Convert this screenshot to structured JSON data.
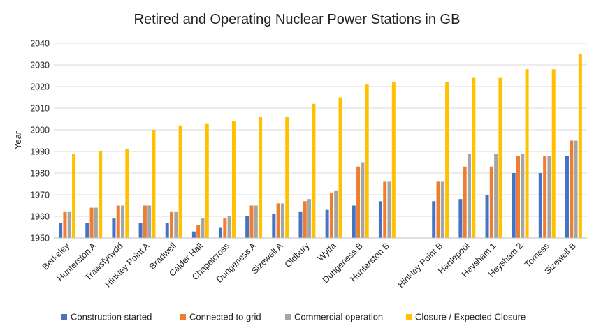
{
  "chart_data": {
    "type": "bar",
    "title": "Retired and Operating Nuclear Power Stations in GB",
    "xlabel": "",
    "ylabel": "Year",
    "ylim": [
      1950,
      2040
    ],
    "yticks": [
      1950,
      1960,
      1970,
      1980,
      1990,
      2000,
      2010,
      2020,
      2030,
      2040
    ],
    "grid": true,
    "legend_position": "bottom",
    "categories": [
      "Berkeley",
      "Hunterston A",
      "Trawsfynydd",
      "Hinkley Point A",
      "Bradwell",
      "Calder Hall",
      "Chapelcross",
      "Dungeness A",
      "Sizewell A",
      "Oldbury",
      "Wylfa",
      "Dungeness B",
      "Hunterston B",
      "",
      "Hinkley Point B",
      "Hartlepool",
      "Heysham 1",
      "Heysham 2",
      "Torness",
      "Sizewell B"
    ],
    "series": [
      {
        "name": "Construction started",
        "color": "#4472C4",
        "values": [
          1957,
          1957,
          1959,
          1957,
          1957,
          1953,
          1955,
          1960,
          1961,
          1962,
          1963,
          1965,
          1967,
          null,
          1967,
          1968,
          1970,
          1980,
          1980,
          1988
        ]
      },
      {
        "name": "Connected to grid",
        "color": "#ED7D31",
        "values": [
          1962,
          1964,
          1965,
          1965,
          1962,
          1956,
          1959,
          1965,
          1966,
          1967,
          1971,
          1983,
          1976,
          null,
          1976,
          1983,
          1983,
          1988,
          1988,
          1995
        ]
      },
      {
        "name": "Commercial operation",
        "color": "#A5A5A5",
        "values": [
          1962,
          1964,
          1965,
          1965,
          1962,
          1959,
          1960,
          1965,
          1966,
          1968,
          1972,
          1985,
          1976,
          null,
          1976,
          1989,
          1989,
          1989,
          1988,
          1995
        ]
      },
      {
        "name": "Closure / Expected Closure",
        "color": "#FFC000",
        "values": [
          1989,
          1990,
          1991,
          2000,
          2002,
          2003,
          2004,
          2006,
          2006,
          2012,
          2015,
          2021,
          2022,
          null,
          2022,
          2024,
          2024,
          2028,
          2028,
          2035
        ]
      }
    ]
  }
}
